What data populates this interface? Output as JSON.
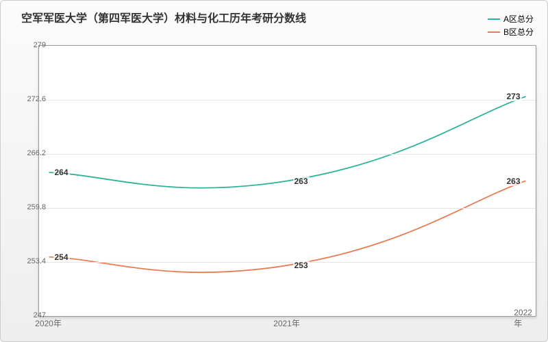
{
  "chart": {
    "type": "line",
    "title": "空军军医大学（第四军医大学）材料与化工历年考研分数线",
    "title_fontsize": 16,
    "title_color": "#333333",
    "background_gradient": [
      "#fbfbfb",
      "#eeeeee"
    ],
    "plot_background": "#ffffff",
    "border_color": "#cccccc",
    "grid_color": "#e5e5e5",
    "axis_color": "#999999",
    "label_fontsize": 12,
    "x": {
      "categories": [
        "2020年",
        "2021年",
        "2022年"
      ],
      "positions_pct": [
        2,
        50,
        98
      ]
    },
    "y": {
      "min": 247,
      "max": 279,
      "ticks": [
        247,
        253.4,
        259.8,
        266.2,
        272.6,
        279
      ]
    },
    "series": [
      {
        "name": "A区总分",
        "color": "#2bb39a",
        "line_width": 1.8,
        "values": [
          264,
          263,
          273
        ],
        "smooth": true
      },
      {
        "name": "B区总分",
        "color": "#e87c52",
        "line_width": 1.8,
        "values": [
          254,
          253,
          263
        ],
        "smooth": true
      }
    ],
    "legend": {
      "position": "top-right",
      "fontsize": 12
    }
  }
}
